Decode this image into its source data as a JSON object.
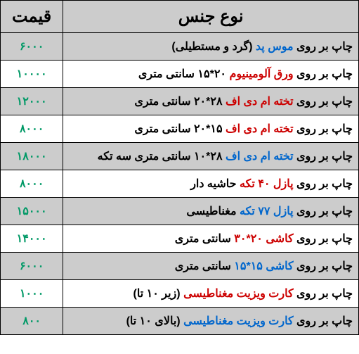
{
  "colors": {
    "header_bg": "#cccccc",
    "row_alt_bg": "#cccccc",
    "row_bg": "#ffffff",
    "border": "#000000",
    "text": "#000000",
    "price": "#009966",
    "blue": "#0066cc",
    "red": "#cc0000"
  },
  "headers": {
    "type": "نوع جنس",
    "price": "قیمت"
  },
  "rows": [
    {
      "price": "۶۰۰۰",
      "segments": [
        {
          "text": "چاپ بر روی ",
          "color": "#000000"
        },
        {
          "text": "موس پد",
          "color": "#0066cc"
        },
        {
          "text": " (گرد و مستطیلی)",
          "color": "#000000"
        }
      ]
    },
    {
      "price": "۱۰۰۰۰",
      "segments": [
        {
          "text": "چاپ بر روی ",
          "color": "#000000"
        },
        {
          "text": "ورق آلومینیوم",
          "color": "#cc0000"
        },
        {
          "text": " ۲۰*۱۵ سانتی متری",
          "color": "#000000"
        }
      ]
    },
    {
      "price": "۱۲۰۰۰",
      "segments": [
        {
          "text": "چاپ بر روی ",
          "color": "#000000"
        },
        {
          "text": "تخته ام دی اف",
          "color": "#cc0000"
        },
        {
          "text": " ۲۸*۲۰ سانتی متری",
          "color": "#000000"
        }
      ]
    },
    {
      "price": "۸۰۰۰",
      "segments": [
        {
          "text": "چاپ بر روی ",
          "color": "#000000"
        },
        {
          "text": "تخته ام دی اف",
          "color": "#cc0000"
        },
        {
          "text": " ۱۵*۲۰ سانتی متری",
          "color": "#000000"
        }
      ]
    },
    {
      "price": "۱۸۰۰۰",
      "segments": [
        {
          "text": "چاپ بر روی ",
          "color": "#000000"
        },
        {
          "text": "تخته ام دی اف",
          "color": "#0066cc"
        },
        {
          "text": " ۲۸*۱۰ سانتی متری سه تکه",
          "color": "#000000"
        }
      ]
    },
    {
      "price": "۸۰۰۰",
      "segments": [
        {
          "text": "چاپ بر روی ",
          "color": "#000000"
        },
        {
          "text": "پازل ۴۰ تکه",
          "color": "#cc0000"
        },
        {
          "text": " حاشیه دار",
          "color": "#000000"
        }
      ]
    },
    {
      "price": "۱۵۰۰۰",
      "segments": [
        {
          "text": "چاپ بر روی ",
          "color": "#000000"
        },
        {
          "text": "پازل ۷۷ تکه",
          "color": "#0066cc"
        },
        {
          "text": " مغناطیسی",
          "color": "#000000"
        }
      ]
    },
    {
      "price": "۱۴۰۰۰",
      "segments": [
        {
          "text": "چاپ بر روی ",
          "color": "#000000"
        },
        {
          "text": "کاشی ۲۰*۳۰",
          "color": "#cc0000"
        },
        {
          "text": " سانتی متری",
          "color": "#000000"
        }
      ]
    },
    {
      "price": "۶۰۰۰",
      "segments": [
        {
          "text": "چاپ بر روی ",
          "color": "#000000"
        },
        {
          "text": "کاشی ۱۵*۱۵",
          "color": "#0066cc"
        },
        {
          "text": " سانتی متری",
          "color": "#000000"
        }
      ]
    },
    {
      "price": "۱۰۰۰",
      "segments": [
        {
          "text": "چاپ بر روی ",
          "color": "#000000"
        },
        {
          "text": "کارت ویزیت مغناطیسی",
          "color": "#cc0000"
        },
        {
          "text": " (زیر ۱۰ تا)",
          "color": "#000000"
        }
      ]
    },
    {
      "price": "۸۰۰",
      "segments": [
        {
          "text": "چاپ بر روی ",
          "color": "#000000"
        },
        {
          "text": "کارت ویزیت مغناطیسی",
          "color": "#0066cc"
        },
        {
          "text": " (بالای ۱۰ تا)",
          "color": "#000000"
        }
      ]
    }
  ]
}
